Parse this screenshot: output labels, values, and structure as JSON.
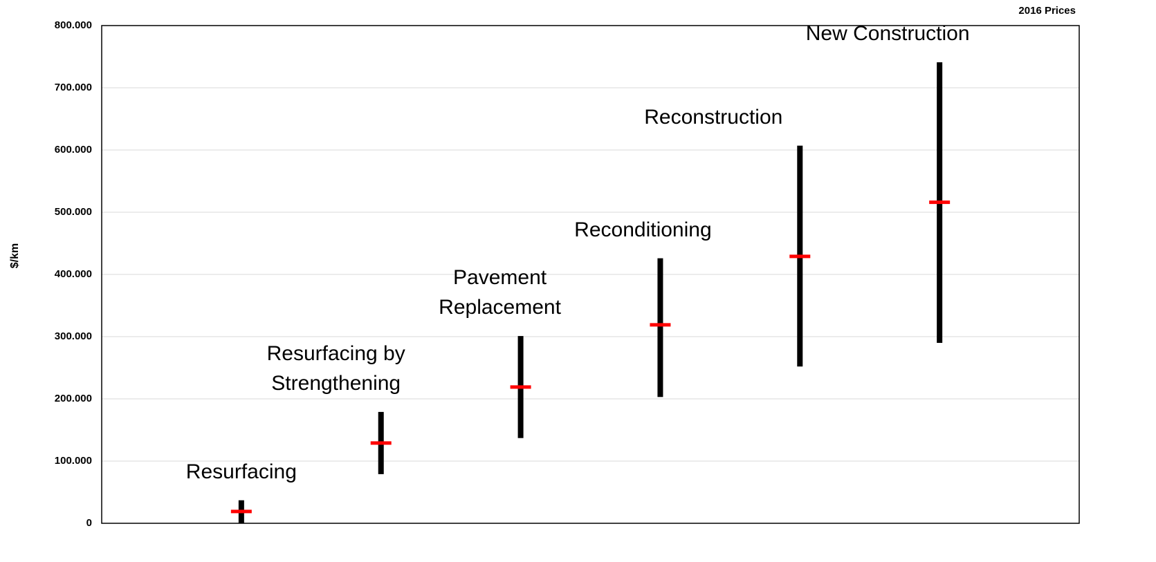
{
  "chart_data": {
    "type": "range",
    "y_label": "$/km",
    "note": "2016 Prices",
    "categories": [
      "Resurfacing",
      "Resurfacing by Strengthening",
      "Pavement Replacement",
      "Reconditioning",
      "Reconstruction",
      "New Construction"
    ],
    "low": [
      0,
      79000,
      137000,
      203000,
      252000,
      290000
    ],
    "high": [
      37000,
      179000,
      301000,
      426000,
      607000,
      741000
    ],
    "mid": [
      19000,
      129000,
      219000,
      319000,
      429000,
      516000
    ],
    "bar_color": "#000000",
    "mid_color": "#ff0000",
    "ylim": [
      0,
      800000
    ],
    "yticks": [
      0,
      {
        "value": 100000,
        "label": "100.000"
      },
      {
        "value": 200000,
        "label": "200.000"
      },
      {
        "value": 300000,
        "label": "300.000"
      },
      {
        "value": 400000,
        "label": "400.000"
      },
      {
        "value": 500000,
        "label": "500.000"
      },
      {
        "value": 600000,
        "label": "600.000"
      },
      {
        "value": 700000,
        "label": "700.000"
      },
      {
        "value": 800000,
        "label": "800.000"
      }
    ],
    "grid": true
  }
}
